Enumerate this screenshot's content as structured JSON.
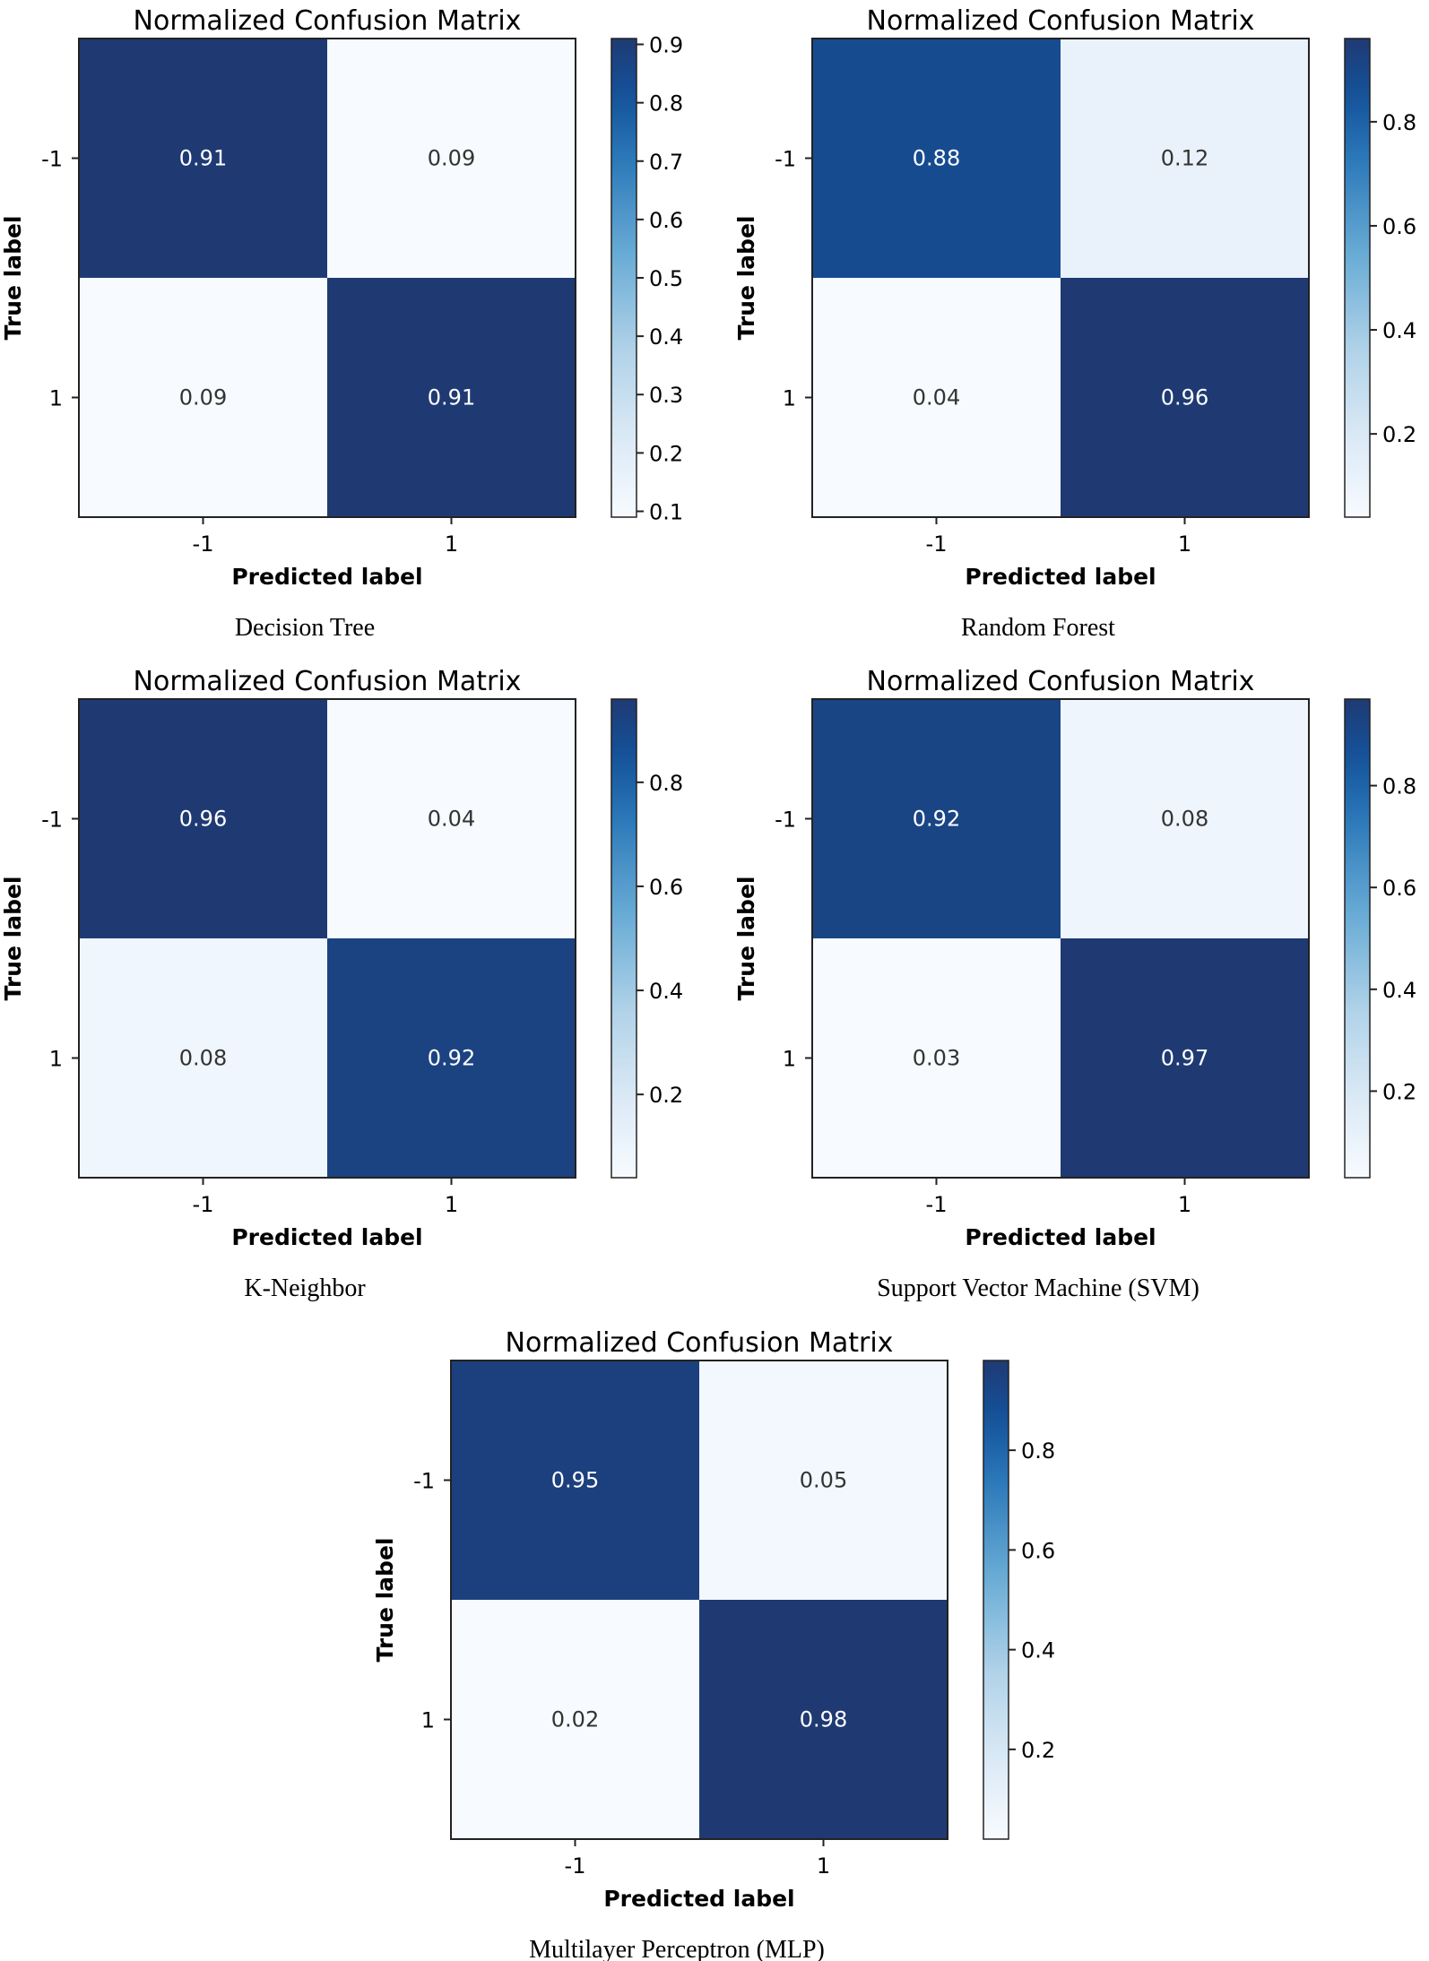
{
  "chart_data": [
    {
      "type": "heatmap",
      "title": "Normalized Confusion Matrix",
      "caption": "Decision Tree",
      "xlabel": "Predicted label",
      "ylabel": "True label",
      "x_categories": [
        "-1",
        "1"
      ],
      "y_categories": [
        "-1",
        "1"
      ],
      "values": [
        [
          0.91,
          0.09
        ],
        [
          0.09,
          0.91
        ]
      ],
      "cell_labels": [
        [
          "0.91",
          "0.09"
        ],
        [
          "0.09",
          "0.91"
        ]
      ],
      "colorbar": {
        "range": [
          0.09,
          0.91
        ],
        "ticks": [
          0.1,
          0.2,
          0.3,
          0.4,
          0.5,
          0.6,
          0.7,
          0.8,
          0.9
        ],
        "tick_labels": [
          "0.1",
          "0.2",
          "0.3",
          "0.4",
          "0.5",
          "0.6",
          "0.7",
          "0.8",
          "0.9"
        ]
      }
    },
    {
      "type": "heatmap",
      "title": "Normalized Confusion Matrix",
      "caption": "Random Forest",
      "xlabel": "Predicted label",
      "ylabel": "True label",
      "x_categories": [
        "-1",
        "1"
      ],
      "y_categories": [
        "-1",
        "1"
      ],
      "values": [
        [
          0.88,
          0.12
        ],
        [
          0.04,
          0.96
        ]
      ],
      "cell_labels": [
        [
          "0.88",
          "0.12"
        ],
        [
          "0.04",
          "0.96"
        ]
      ],
      "colorbar": {
        "range": [
          0.04,
          0.96
        ],
        "ticks": [
          0.2,
          0.4,
          0.6,
          0.8
        ],
        "tick_labels": [
          "0.2",
          "0.4",
          "0.6",
          "0.8"
        ]
      }
    },
    {
      "type": "heatmap",
      "title": "Normalized Confusion Matrix",
      "caption": "K-Neighbor",
      "xlabel": "Predicted label",
      "ylabel": "True label",
      "x_categories": [
        "-1",
        "1"
      ],
      "y_categories": [
        "-1",
        "1"
      ],
      "values": [
        [
          0.96,
          0.04
        ],
        [
          0.08,
          0.92
        ]
      ],
      "cell_labels": [
        [
          "0.96",
          "0.04"
        ],
        [
          "0.08",
          "0.92"
        ]
      ],
      "colorbar": {
        "range": [
          0.04,
          0.96
        ],
        "ticks": [
          0.2,
          0.4,
          0.6,
          0.8
        ],
        "tick_labels": [
          "0.2",
          "0.4",
          "0.6",
          "0.8"
        ]
      }
    },
    {
      "type": "heatmap",
      "title": "Normalized Confusion Matrix",
      "caption": "Support Vector Machine (SVM)",
      "xlabel": "Predicted label",
      "ylabel": "True label",
      "x_categories": [
        "-1",
        "1"
      ],
      "y_categories": [
        "-1",
        "1"
      ],
      "values": [
        [
          0.92,
          0.08
        ],
        [
          0.03,
          0.97
        ]
      ],
      "cell_labels": [
        [
          "0.92",
          "0.08"
        ],
        [
          "0.03",
          "0.97"
        ]
      ],
      "colorbar": {
        "range": [
          0.03,
          0.97
        ],
        "ticks": [
          0.2,
          0.4,
          0.6,
          0.8
        ],
        "tick_labels": [
          "0.2",
          "0.4",
          "0.6",
          "0.8"
        ]
      }
    },
    {
      "type": "heatmap",
      "title": "Normalized Confusion Matrix",
      "caption": "Multilayer Perceptron (MLP)",
      "xlabel": "Predicted label",
      "ylabel": "True label",
      "x_categories": [
        "-1",
        "1"
      ],
      "y_categories": [
        "-1",
        "1"
      ],
      "values": [
        [
          0.95,
          0.05
        ],
        [
          0.02,
          0.98
        ]
      ],
      "cell_labels": [
        [
          "0.95",
          "0.05"
        ],
        [
          "0.02",
          "0.98"
        ]
      ],
      "colorbar": {
        "range": [
          0.02,
          0.98
        ],
        "ticks": [
          0.2,
          0.4,
          0.6,
          0.8
        ],
        "tick_labels": [
          "0.2",
          "0.4",
          "0.6",
          "0.8"
        ]
      }
    }
  ],
  "colors": {
    "low": "#f7fbff",
    "high": "#1f3a73",
    "axis": "#222222",
    "text_dark": "#000000",
    "text_light": "#ffffff"
  }
}
